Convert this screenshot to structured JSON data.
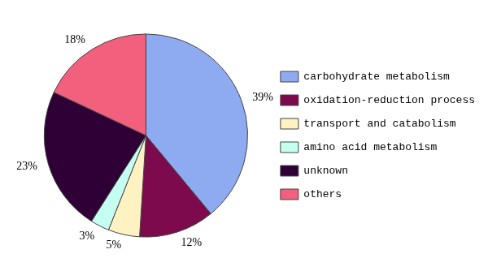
{
  "chart_data": {
    "type": "pie",
    "categories": [
      "carbohydrate metabolism",
      "oxidation-reduction process",
      "transport and catabolism",
      "amino acid metabolism",
      "unknown",
      "others"
    ],
    "values": [
      39,
      12,
      5,
      3,
      23,
      18
    ],
    "value_labels": [
      "39%",
      "12%",
      "5%",
      "3%",
      "23%",
      "18%"
    ],
    "colors": [
      "#8eaaf0",
      "#7d0a4c",
      "#fff2c2",
      "#c4fff2",
      "#2e0035",
      "#f2607e"
    ],
    "legend": "right",
    "data_labels": true
  }
}
